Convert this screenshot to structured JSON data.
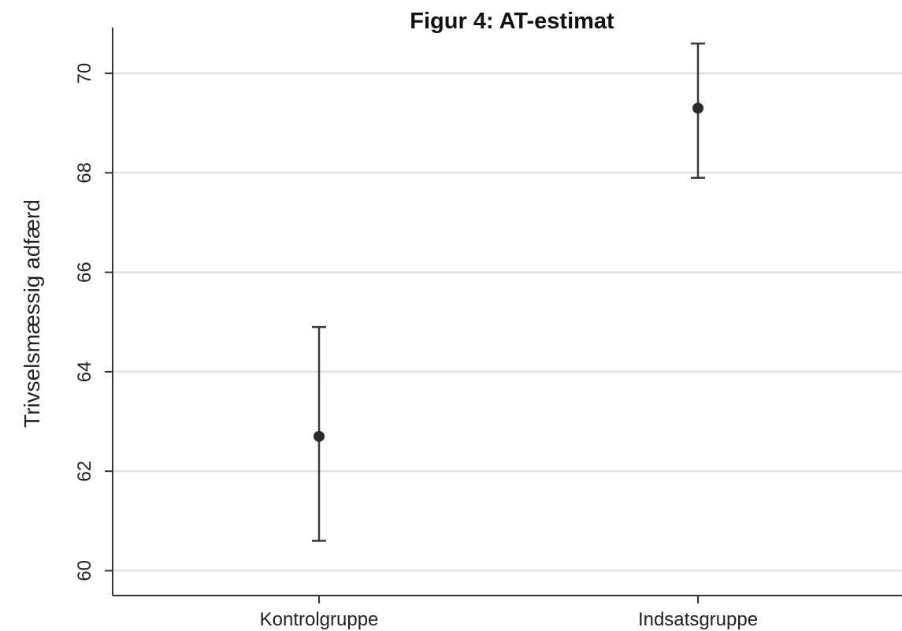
{
  "chart_data": {
    "type": "scatter",
    "title": "Figur 4: AT-estimat",
    "xlabel": "",
    "ylabel": "Trivselsmæssig adfærd",
    "categories": [
      "Kontrolgruppe",
      "Indsatsgruppe"
    ],
    "series": [
      {
        "values": [
          62.7,
          69.3
        ],
        "ci_lower": [
          60.6,
          67.9
        ],
        "ci_upper": [
          64.9,
          70.6
        ]
      }
    ],
    "ylim": [
      59.5,
      71.0
    ],
    "yticks": [
      60,
      62,
      64,
      66,
      68,
      70
    ],
    "grid": true,
    "legend": "none"
  },
  "colors": {
    "marker": "#2b2b2b",
    "errorbar": "#3a3a3a",
    "grid": "#e2e2e2",
    "axis": "#333333"
  }
}
